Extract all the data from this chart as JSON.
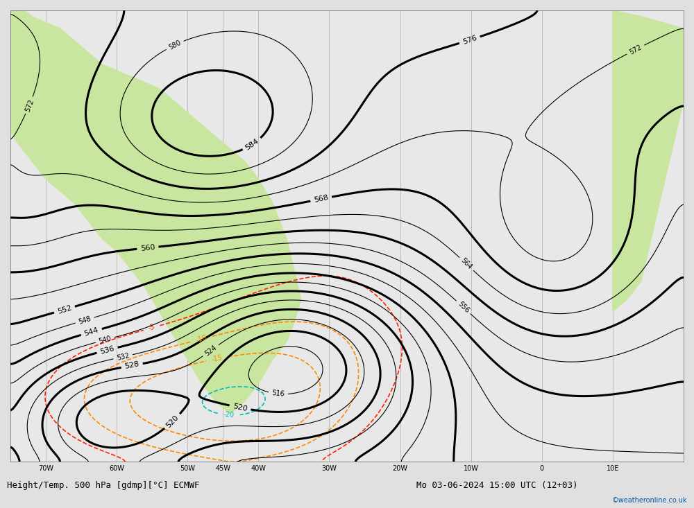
{
  "title_left": "Height/Temp. 500 hPa [gdmp][°C] ECMWF",
  "title_right": "Mo 03-06-2024 15:00 UTC (12+03)",
  "watermark": "©weatheronline.co.uk",
  "background_color": "#e8e8e8",
  "land_color": "#c8e6a0",
  "grid_color": "#aaaaaa",
  "lon_min": -75,
  "lon_max": 20,
  "lat_min": -65,
  "lat_max": 10,
  "x_ticks": [
    -70,
    -60,
    -50,
    -45,
    -40,
    -30,
    -20,
    -10,
    0,
    10
  ],
  "x_tick_labels": [
    "70W",
    "60W",
    "50W",
    "45W",
    "40W",
    "30W",
    "20W",
    "10W",
    "0",
    "10E"
  ],
  "height_contour_color": "#000000",
  "temp_pos_color": "#ff2200",
  "temp_neg_color": "#ff8800",
  "temp_cold_color": "#00bbbb",
  "temp_vcold_color": "#3399ff",
  "temp_vvcold_color": "#00cc44"
}
